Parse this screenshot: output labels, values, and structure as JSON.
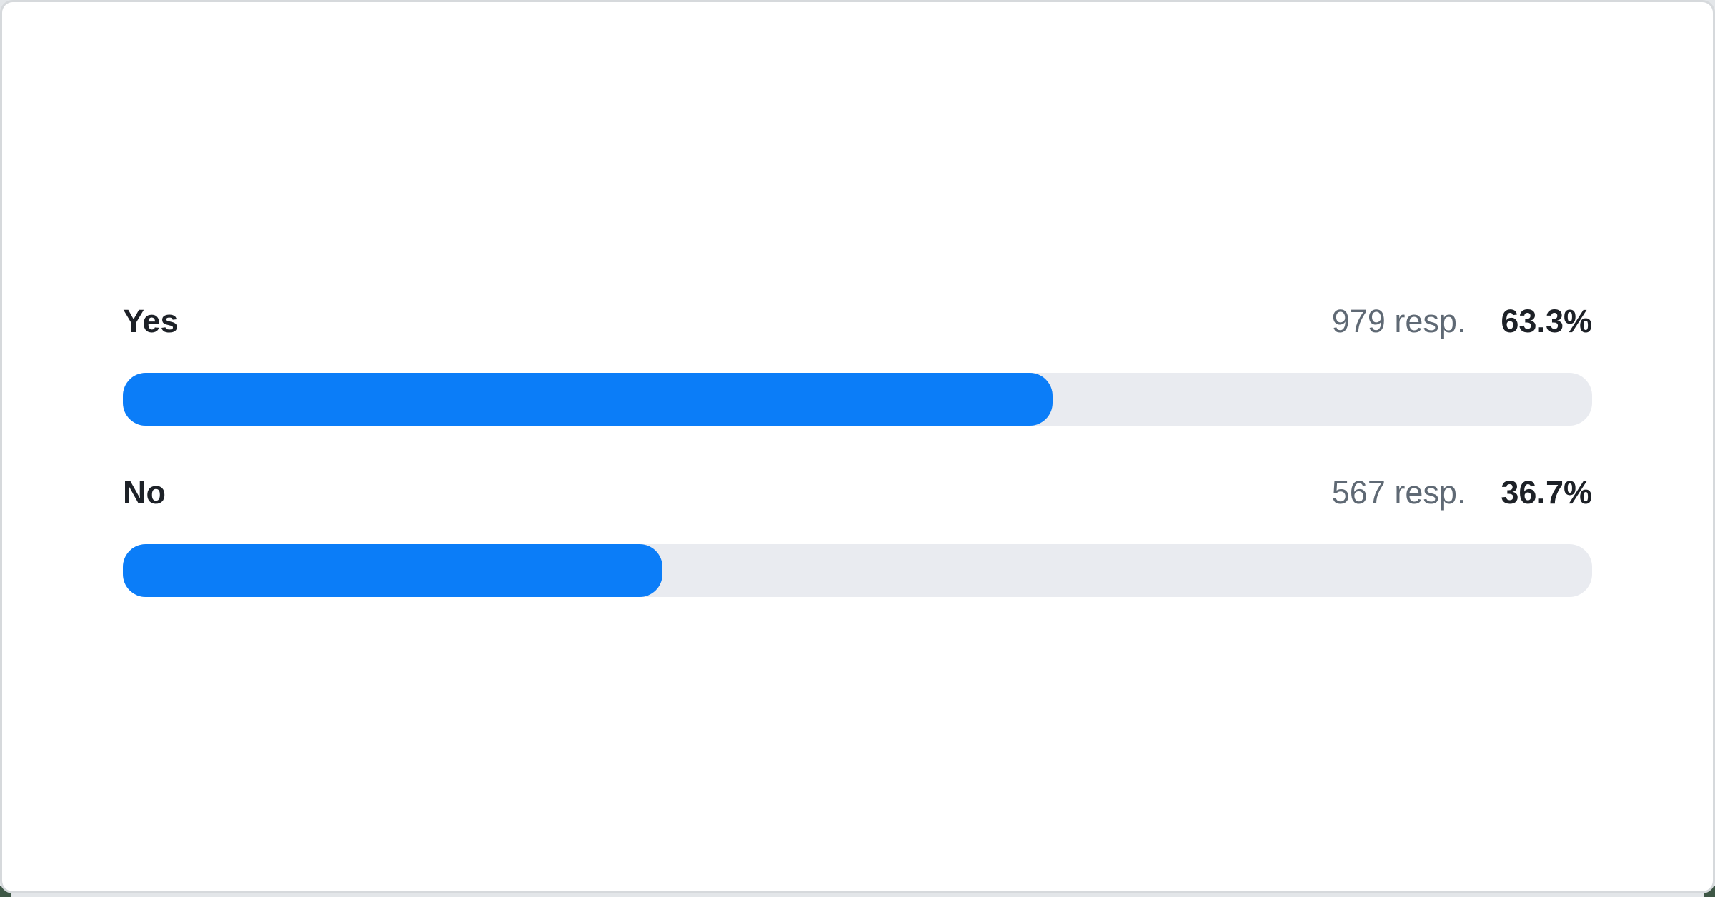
{
  "page": {
    "background_color": "#e3e6e9",
    "corner_accent_color": "#3e5746",
    "card_background": "#ffffff",
    "card_border_color": "#d6d9dc"
  },
  "poll": {
    "bar_fill_color": "#0b7df8",
    "bar_track_color": "#e9ebf0",
    "options": [
      {
        "label": "Yes",
        "responses_label": "979 resp.",
        "percent_label": "63.3%",
        "percent": 63.3
      },
      {
        "label": "No",
        "responses_label": "567 resp.",
        "percent_label": "36.7%",
        "percent": 36.7
      }
    ]
  },
  "chart_data": {
    "type": "bar",
    "orientation": "horizontal",
    "title": "",
    "categories": [
      "Yes",
      "No"
    ],
    "values": [
      63.3,
      36.7
    ],
    "value_unit": "%",
    "response_counts": [
      979,
      567
    ],
    "value_labels": [
      "63.3%",
      "36.7%"
    ],
    "count_labels": [
      "979 resp.",
      "567 resp."
    ],
    "xlim": [
      0,
      100
    ],
    "bar_color": "#0b7df8",
    "track_color": "#e9ebf0",
    "grid": false,
    "legend": false
  }
}
